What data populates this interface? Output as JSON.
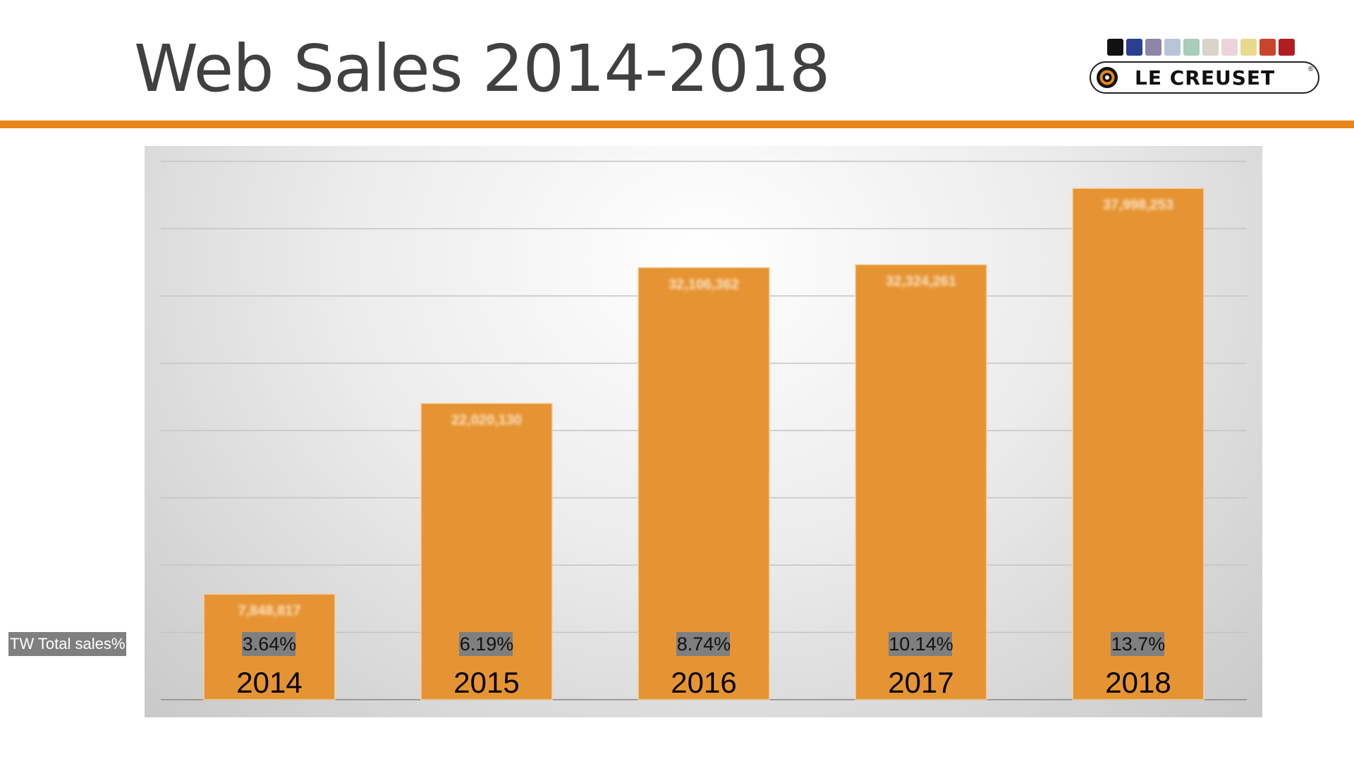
{
  "title": "Web Sales 2014-2018",
  "logo": {
    "wordmark": "LE CREUSET",
    "registered": "®",
    "swatch_colors": [
      "#111111",
      "#2a3f8f",
      "#8d86a6",
      "#b9c4d8",
      "#a9cdbb",
      "#d9d3c8",
      "#ecd2d9",
      "#e9d98d",
      "#c8452c",
      "#b01e23"
    ]
  },
  "colors": {
    "accent": "#E8861B",
    "bar": "#E69433",
    "percent_box": "#7f7f7f"
  },
  "row_label": "TW Total sales%",
  "chart_data": {
    "type": "bar",
    "title": "Web Sales 2014-2018",
    "categories": [
      "2014",
      "2015",
      "2016",
      "2017",
      "2018"
    ],
    "values": [
      7848817,
      22020130,
      32106362,
      32324261,
      37998253
    ],
    "data_labels": [
      "7,848,817",
      "22,020,130",
      "32,106,362",
      "32,324,261",
      "37,998,253"
    ],
    "tw_total_sales_percent": [
      "3.64%",
      "6.19%",
      "8.74%",
      "10.14%",
      "13.7%"
    ],
    "ylim": [
      0,
      40000000
    ],
    "grid": true,
    "legend": "none",
    "xlabel": "",
    "ylabel": ""
  }
}
